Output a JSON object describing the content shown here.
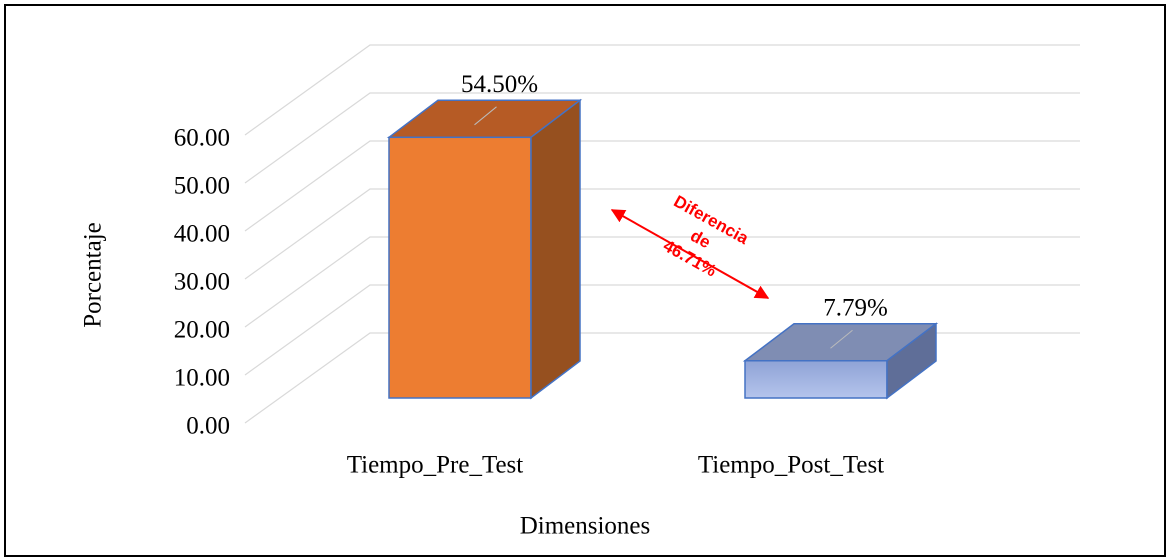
{
  "chart_data": {
    "type": "bar3d",
    "categories": [
      "Tiempo_Pre_Test",
      "Tiempo_Post_Test"
    ],
    "values": [
      54.5,
      7.79
    ],
    "value_labels": [
      "54.50%",
      "7.79%"
    ],
    "colors": [
      "#ED7D31",
      "#9DB0DE"
    ],
    "ylim": [
      0,
      60
    ],
    "yticks": [
      {
        "value": 0,
        "label": "0.00"
      },
      {
        "value": 10,
        "label": "10.00"
      },
      {
        "value": 20,
        "label": "20.00"
      },
      {
        "value": 30,
        "label": "30.00"
      },
      {
        "value": 40,
        "label": "40.00"
      },
      {
        "value": 50,
        "label": "50.00"
      },
      {
        "value": 60,
        "label": "60.00"
      }
    ],
    "ylabel": "Porcentaje",
    "xlabel": "Dimensiones",
    "annotation": [
      "Diferencia",
      "de",
      "46.71%"
    ],
    "grid": true
  }
}
